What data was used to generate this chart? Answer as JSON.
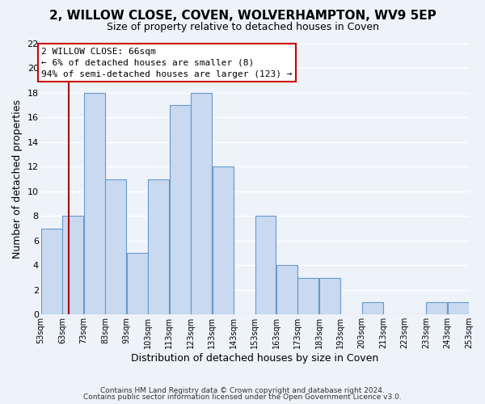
{
  "title": "2, WILLOW CLOSE, COVEN, WOLVERHAMPTON, WV9 5EP",
  "subtitle": "Size of property relative to detached houses in Coven",
  "xlabel": "Distribution of detached houses by size in Coven",
  "ylabel": "Number of detached properties",
  "bins_left": [
    53,
    63,
    73,
    83,
    93,
    103,
    113,
    123,
    133,
    143,
    153,
    163,
    173,
    183,
    193,
    203,
    213,
    223,
    233,
    243
  ],
  "counts": [
    7,
    8,
    18,
    11,
    5,
    11,
    17,
    18,
    12,
    0,
    8,
    4,
    3,
    3,
    0,
    1,
    0,
    0,
    1,
    1
  ],
  "bar_color": "#c9d9f0",
  "bar_edge_color": "#6699cc",
  "vline_x": 66,
  "vline_color": "#aa0000",
  "ylim": [
    0,
    22
  ],
  "yticks": [
    0,
    2,
    4,
    6,
    8,
    10,
    12,
    14,
    16,
    18,
    20,
    22
  ],
  "tick_labels": [
    "53sqm",
    "63sqm",
    "73sqm",
    "83sqm",
    "93sqm",
    "103sqm",
    "113sqm",
    "123sqm",
    "133sqm",
    "143sqm",
    "153sqm",
    "163sqm",
    "173sqm",
    "183sqm",
    "193sqm",
    "203sqm",
    "213sqm",
    "223sqm",
    "233sqm",
    "243sqm",
    "253sqm"
  ],
  "annotation_title": "2 WILLOW CLOSE: 66sqm",
  "annotation_line1": "← 6% of detached houses are smaller (8)",
  "annotation_line2": "94% of semi-detached houses are larger (123) →",
  "annotation_box_facecolor": "#ffffff",
  "annotation_box_edgecolor": "#cc0000",
  "footer1": "Contains HM Land Registry data © Crown copyright and database right 2024.",
  "footer2": "Contains public sector information licensed under the Open Government Licence v3.0.",
  "background_color": "#eef2f9",
  "grid_color": "#ffffff"
}
